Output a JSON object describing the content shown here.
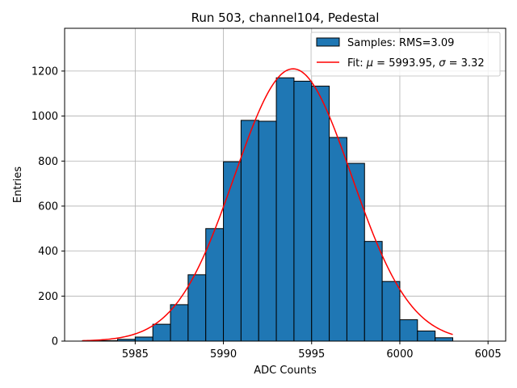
{
  "chart_data": {
    "type": "bar",
    "title": "Run 503, channel104, Pedestal",
    "xlabel": "ADC Counts",
    "ylabel": "Entries",
    "xlim": [
      5981,
      6006
    ],
    "ylim": [
      0,
      1390
    ],
    "xticks": [
      5985,
      5990,
      5995,
      6000,
      6005
    ],
    "yticks": [
      0,
      200,
      400,
      600,
      800,
      1000,
      1200
    ],
    "grid": true,
    "legend_position": "top-right",
    "bins": {
      "edges": [
        5982,
        5983,
        5984,
        5985,
        5986,
        5987,
        5988,
        5989,
        5990,
        5991,
        5992,
        5993,
        5994,
        5995,
        5996,
        5997,
        5998,
        5999,
        6000,
        6001,
        6002,
        6003
      ],
      "counts": [
        1,
        2,
        8,
        18,
        75,
        162,
        295,
        500,
        797,
        981,
        977,
        1170,
        1155,
        1133,
        905,
        790,
        443,
        265,
        95,
        45,
        15
      ]
    },
    "fit": {
      "mu": 5993.95,
      "sigma": 3.32,
      "peak": 1210,
      "x_range": [
        5982,
        6003
      ]
    },
    "colors": {
      "bars": "#1f77b4",
      "bar_edge": "#000000",
      "fit": "#ff0000",
      "grid": "#b0b0b0"
    },
    "legend": [
      {
        "label_main": "Samples: RMS=3.09",
        "kind": "bar"
      },
      {
        "label_main": "Fit: ",
        "mu_sym": "μ",
        "mid": " = 5993.95, ",
        "sigma_sym": "σ",
        "tail": " = 3.32",
        "kind": "line"
      }
    ]
  }
}
